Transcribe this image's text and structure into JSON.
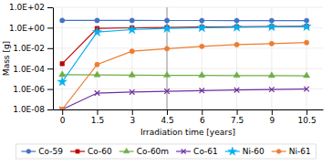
{
  "chart_data": {
    "type": "line",
    "xlabel": "Irradiation time [years]",
    "ylabel": "Mass [g]",
    "x": [
      0,
      1.5,
      3,
      4.5,
      6,
      7.5,
      9,
      10.5
    ],
    "series": [
      {
        "name": "Co-59",
        "color": "#4472C4",
        "marker": "circle",
        "values": [
          5.2,
          5.2,
          5.15,
          5.1,
          5.05,
          5.0,
          5.0,
          5.0
        ]
      },
      {
        "name": "Co-60",
        "color": "#C00000",
        "marker": "square",
        "values": [
          0.0003,
          0.85,
          0.98,
          1.05,
          1.15,
          1.25,
          1.32,
          1.38
        ]
      },
      {
        "name": "Co-60m",
        "color": "#70AD47",
        "marker": "triangle",
        "values": [
          2.5e-05,
          2.4e-05,
          2.3e-05,
          2.2e-05,
          2.15e-05,
          2.1e-05,
          2.05e-05,
          2e-05
        ]
      },
      {
        "name": "Co-61",
        "color": "#7030A0",
        "marker": "cross",
        "values": [
          1e-08,
          4e-07,
          5e-07,
          6e-07,
          7e-07,
          8e-07,
          9e-07,
          1e-06
        ]
      },
      {
        "name": "Ni-60",
        "color": "#00B0F0",
        "marker": "star",
        "values": [
          5e-06,
          0.38,
          0.65,
          0.85,
          1.0,
          1.1,
          1.2,
          1.3
        ]
      },
      {
        "name": "Ni-61",
        "color": "#ED7D31",
        "marker": "circle",
        "values": [
          1e-08,
          0.00025,
          0.005,
          0.009,
          0.015,
          0.022,
          0.028,
          0.035
        ]
      }
    ],
    "xlim": [
      -0.4,
      11.2
    ],
    "xticks": [
      0,
      1.5,
      3,
      4.5,
      6,
      7.5,
      9,
      10.5
    ],
    "ylim": [
      1e-08,
      100.0
    ],
    "yticks": [
      {
        "value": 1e-08,
        "label": "1.0E-08"
      },
      {
        "value": 1e-06,
        "label": "1.0E-06"
      },
      {
        "value": 0.0001,
        "label": "1.0E-04"
      },
      {
        "value": 0.01,
        "label": "1.0E-02"
      },
      {
        "value": 1.0,
        "label": "1.0E+00"
      },
      {
        "value": 100.0,
        "label": "1.0E+02"
      }
    ],
    "vlines": [
      4.5
    ],
    "log": "y",
    "grid": true,
    "legend": "bottom"
  }
}
